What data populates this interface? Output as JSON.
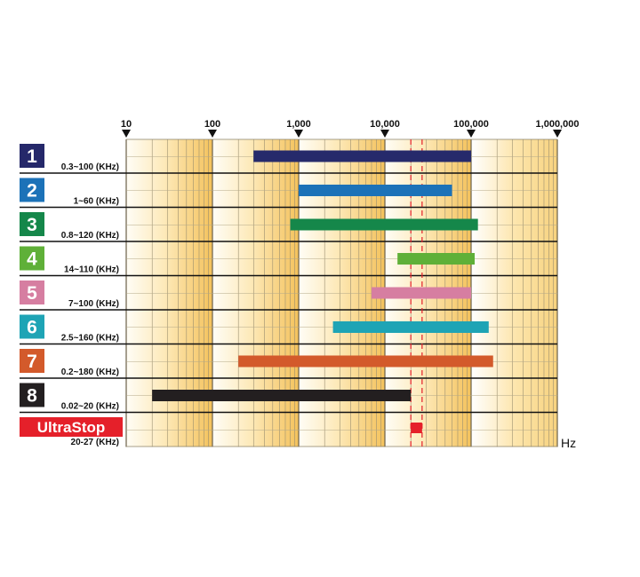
{
  "chart_data": {
    "type": "bar",
    "orientation": "horizontal-range",
    "x_scale": "log",
    "xlim": [
      10,
      1000000
    ],
    "x_ticks": [
      10,
      100,
      1000,
      10000,
      100000,
      1000000
    ],
    "x_tick_labels": [
      "10",
      "100",
      "1,000",
      "10,000",
      "100,000",
      "1,000,000"
    ],
    "x_unit": "Hz",
    "grid": true,
    "reference_band": {
      "from": 20000,
      "to": 27000,
      "color": "#e5202a",
      "style": "dashed"
    },
    "series": [
      {
        "badge": "1",
        "label": "0.3~100 (KHz)",
        "from": 300,
        "to": 100000,
        "color": "#262a6b",
        "badge_color": "#25286a"
      },
      {
        "badge": "2",
        "label": "1~60 (KHz)",
        "from": 1000,
        "to": 60000,
        "color": "#1c72b8",
        "badge_color": "#1c72b8"
      },
      {
        "badge": "3",
        "label": "0.8~120 (KHz)",
        "from": 800,
        "to": 120000,
        "color": "#15874a",
        "badge_color": "#15874a"
      },
      {
        "badge": "4",
        "label": "14~110 (KHz)",
        "from": 14000,
        "to": 110000,
        "color": "#5fb038",
        "badge_color": "#5fb038"
      },
      {
        "badge": "5",
        "label": "7~100 (KHz)",
        "from": 7000,
        "to": 100000,
        "color": "#d67ea1",
        "badge_color": "#d67ea1"
      },
      {
        "badge": "6",
        "label": "2.5~160 (KHz)",
        "from": 2500,
        "to": 160000,
        "color": "#1ea4b5",
        "badge_color": "#1ea4b5"
      },
      {
        "badge": "7",
        "label": "0.2~180 (KHz)",
        "from": 200,
        "to": 180000,
        "color": "#d35a2b",
        "badge_color": "#d35a2b"
      },
      {
        "badge": "8",
        "label": "0.02~20 (KHz)",
        "from": 20,
        "to": 20000,
        "color": "#231f20",
        "badge_color": "#231f20"
      },
      {
        "badge": "UltraStop",
        "label": "20-27 (KHz)",
        "from": 20000,
        "to": 27000,
        "color": "#e5202a",
        "badge_color": "#e5202a"
      }
    ]
  }
}
